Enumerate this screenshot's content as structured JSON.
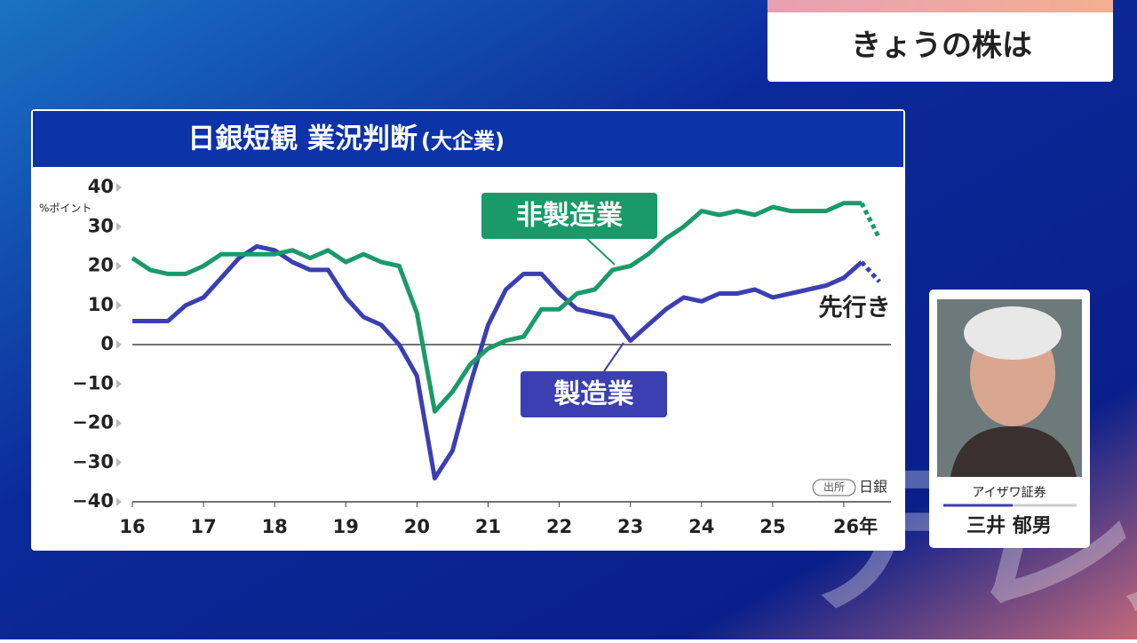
{
  "header": {
    "title": "きょうの株は"
  },
  "chart_data": {
    "type": "line",
    "title": "日銀短観 業況判断",
    "subtitle": "(大企業)",
    "y_label": "%ポイント",
    "source_tag": "出所",
    "source": "日銀",
    "forecast_label": "先行き",
    "x": [
      16,
      16.25,
      16.5,
      16.75,
      17,
      17.25,
      17.5,
      17.75,
      18,
      18.25,
      18.5,
      18.75,
      19,
      19.25,
      19.5,
      19.75,
      20,
      20.25,
      20.5,
      20.75,
      21,
      21.25,
      21.5,
      21.75,
      22,
      22.25,
      22.5,
      22.75,
      23,
      23.25,
      23.5,
      23.75,
      24,
      24.25,
      24.5,
      24.75,
      25,
      25.25,
      25.5,
      25.75,
      26,
      26.25,
      26.5
    ],
    "series": [
      {
        "name": "製造業",
        "color": "#3b3fb2",
        "values": [
          6,
          6,
          6,
          10,
          12,
          17,
          22,
          25,
          24,
          21,
          19,
          19,
          12,
          7,
          5,
          0,
          -8,
          -34,
          -27,
          -10,
          5,
          14,
          18,
          18,
          13,
          9,
          8,
          7,
          1,
          5,
          9,
          12,
          11,
          13,
          13,
          14,
          12,
          13,
          14,
          15,
          17,
          21,
          null
        ],
        "forecast_values": [
          null,
          null,
          null,
          null,
          null,
          null,
          null,
          null,
          null,
          null,
          null,
          null,
          null,
          null,
          null,
          null,
          null,
          null,
          null,
          null,
          null,
          null,
          null,
          null,
          null,
          null,
          null,
          null,
          null,
          null,
          null,
          null,
          null,
          null,
          null,
          null,
          null,
          null,
          null,
          null,
          null,
          21,
          16
        ]
      },
      {
        "name": "非製造業",
        "color": "#1a9a68",
        "values": [
          22,
          19,
          18,
          18,
          20,
          23,
          23,
          23,
          23,
          24,
          22,
          24,
          21,
          23,
          21,
          20,
          8,
          -17,
          -12,
          -5,
          -1,
          1,
          2,
          9,
          9,
          13,
          14,
          19,
          20,
          23,
          27,
          30,
          34,
          33,
          34,
          33,
          35,
          34,
          34,
          34,
          36,
          36,
          null
        ],
        "forecast_values": [
          null,
          null,
          null,
          null,
          null,
          null,
          null,
          null,
          null,
          null,
          null,
          null,
          null,
          null,
          null,
          null,
          null,
          null,
          null,
          null,
          null,
          null,
          null,
          null,
          null,
          null,
          null,
          null,
          null,
          null,
          null,
          null,
          null,
          null,
          null,
          null,
          null,
          null,
          null,
          null,
          null,
          36,
          27
        ]
      }
    ],
    "xlim": [
      16,
      26.5
    ],
    "xticks": [
      16,
      17,
      18,
      19,
      20,
      21,
      22,
      23,
      24,
      25,
      {
        "value": 26,
        "label": "26年"
      }
    ],
    "ylim": [
      -40,
      40
    ],
    "yticks": [
      {
        "value": -40,
        "label": "−40"
      },
      {
        "value": -30,
        "label": "−30"
      },
      {
        "value": -20,
        "label": "−20"
      },
      {
        "value": -10,
        "label": "−10"
      },
      0,
      10,
      20,
      30,
      40
    ]
  },
  "guest": {
    "company": "アイザワ証券",
    "name": "三井 郁男"
  },
  "watermark": "テレ東"
}
